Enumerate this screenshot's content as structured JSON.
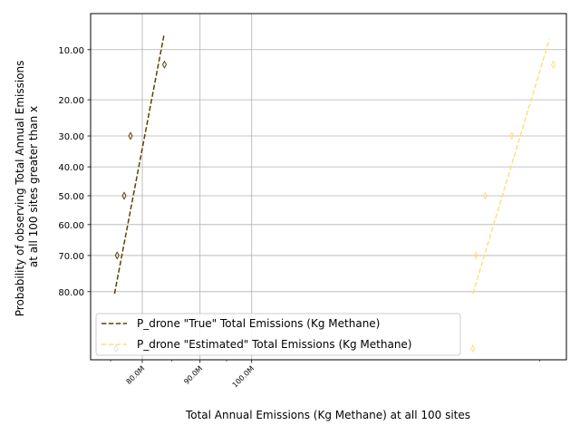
{
  "chart_data": {
    "type": "line",
    "title": "",
    "xlabel": "Total Annual Emissions (Kg Methane) at all 100 sites",
    "ylabel_lines": [
      "Probability of observing Total Annual Emissions",
      "at all 100 sites greater than x"
    ],
    "x_scale": "log",
    "y_scale": "probit",
    "y_inverted": true,
    "xlim": [
      72000000,
      190000000
    ],
    "ylim": [
      5.5,
      92.5
    ],
    "x_ticks": [
      {
        "value": 80000000,
        "label": "80.0M"
      },
      {
        "value": 90000000,
        "label": "90.0M"
      },
      {
        "value": 100000000,
        "label": "100.0M"
      }
    ],
    "x_minor_ticks": [
      75000000,
      85000000,
      95000000,
      180000000
    ],
    "y_ticks": [
      {
        "value": 10,
        "label": "10.00"
      },
      {
        "value": 20,
        "label": "20.00"
      },
      {
        "value": 30,
        "label": "30.00"
      },
      {
        "value": 40,
        "label": "40.00"
      },
      {
        "value": 50,
        "label": "50.00"
      },
      {
        "value": 60,
        "label": "60.00"
      },
      {
        "value": 70,
        "label": "70.00"
      },
      {
        "value": 80,
        "label": "80.00"
      }
    ],
    "grid": true,
    "legend_position": "lower-left",
    "series": [
      {
        "name": "P_drone \"True\" Total Emissions (Kg Methane)",
        "color": "#5a4200",
        "line_style": "dashed",
        "fit_line": [
          [
            75600000,
            80.5
          ],
          [
            83600000,
            8.0
          ]
        ],
        "points": [
          {
            "x": 75800000,
            "y": 91.0
          },
          {
            "x": 76000000,
            "y": 70.0
          },
          {
            "x": 77100000,
            "y": 50.0
          },
          {
            "x": 78100000,
            "y": 30.0
          },
          {
            "x": 83700000,
            "y": 12.5
          }
        ]
      },
      {
        "name": "P_drone \"Estimated\" Total Emissions (Kg Methane)",
        "color": "#ffe07a",
        "line_style": "dashed",
        "fit_line": [
          [
            157000000,
            80.5
          ],
          [
            183500000,
            8.5
          ]
        ],
        "points": [
          {
            "x": 157000000,
            "y": 91.0
          },
          {
            "x": 158000000,
            "y": 70.0
          },
          {
            "x": 161000000,
            "y": 50.0
          },
          {
            "x": 170000000,
            "y": 30.0
          },
          {
            "x": 185000000,
            "y": 12.5
          }
        ]
      }
    ]
  }
}
